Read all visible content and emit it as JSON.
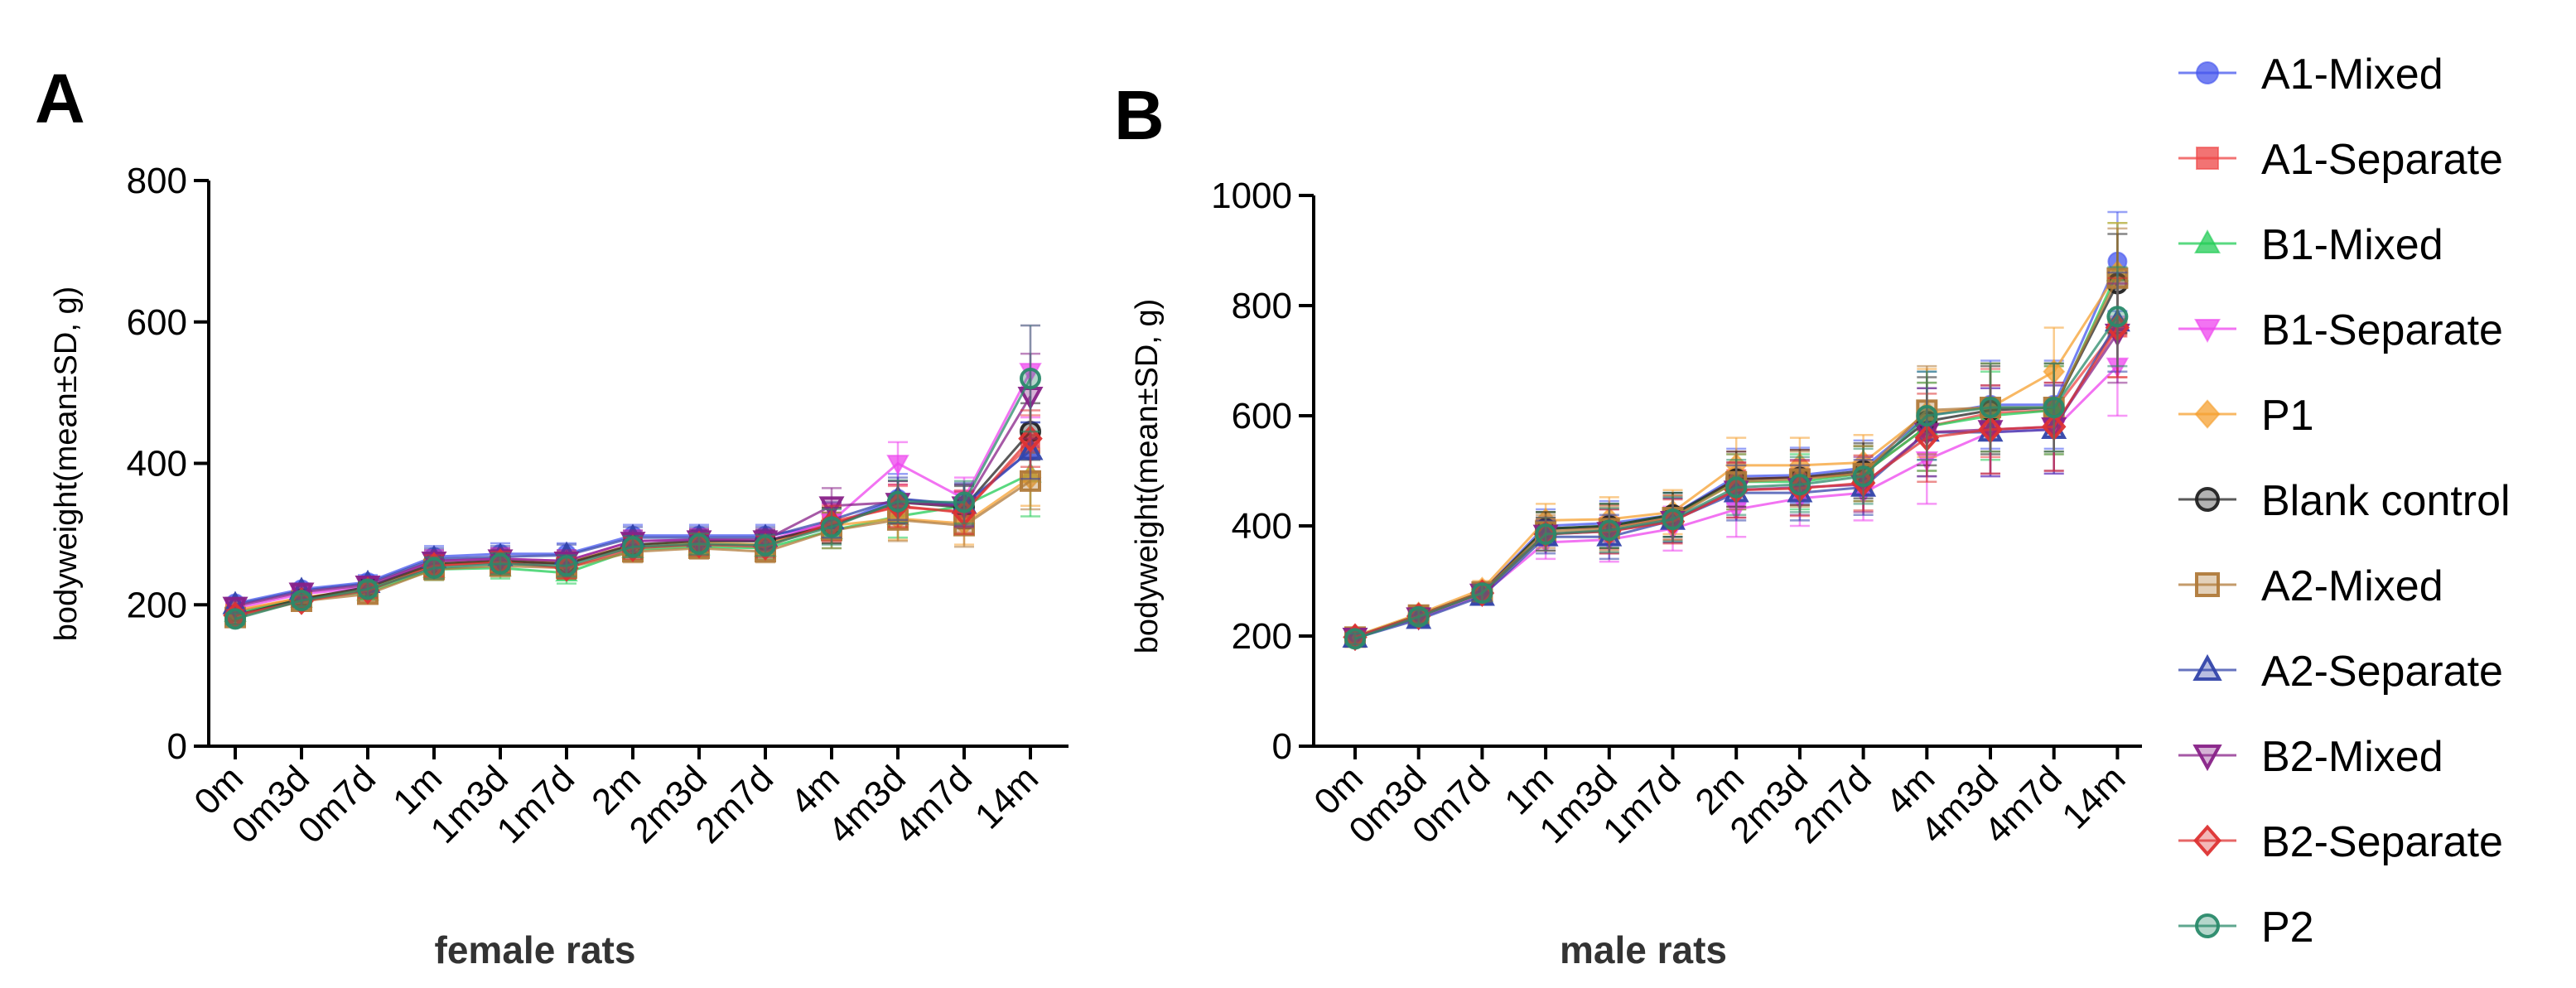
{
  "chart_data": [
    {
      "type": "line",
      "panel": "A",
      "title": "",
      "xlabel": "female rats",
      "ylabel": "bodyweight(mean±SD, g)",
      "ylim": [
        0,
        800
      ],
      "yticks": [
        0,
        200,
        400,
        600,
        800
      ],
      "categories": [
        "0m",
        "0m3d",
        "0m7d",
        "1m",
        "1m3d",
        "1m7d",
        "2m",
        "2m3d",
        "2m7d",
        "4m",
        "4m3d",
        "4m7d",
        "14m"
      ],
      "error_bars": true,
      "series": [
        {
          "name": "A1-Mixed",
          "values": [
            202,
            222,
            232,
            268,
            272,
            272,
            298,
            298,
            298,
            312,
            350,
            340,
            418
          ],
          "sd": [
            8,
            8,
            10,
            15,
            15,
            15,
            15,
            15,
            15,
            25,
            35,
            30,
            40
          ]
        },
        {
          "name": "A1-Separate",
          "values": [
            190,
            210,
            220,
            255,
            260,
            258,
            282,
            285,
            285,
            318,
            338,
            332,
            428
          ],
          "sd": [
            8,
            8,
            10,
            15,
            15,
            15,
            15,
            15,
            15,
            25,
            30,
            30,
            40
          ]
        },
        {
          "name": "B1-Mixed",
          "values": [
            188,
            208,
            218,
            250,
            252,
            245,
            278,
            282,
            280,
            305,
            325,
            340,
            385
          ],
          "sd": [
            8,
            8,
            10,
            15,
            15,
            15,
            15,
            15,
            15,
            25,
            30,
            30,
            60
          ]
        },
        {
          "name": "B1-Separate",
          "values": [
            195,
            215,
            225,
            262,
            265,
            262,
            290,
            292,
            290,
            318,
            400,
            350,
            530
          ],
          "sd": [
            8,
            8,
            10,
            15,
            15,
            15,
            15,
            15,
            15,
            25,
            30,
            30,
            65
          ]
        },
        {
          "name": "P1",
          "values": [
            192,
            210,
            222,
            258,
            262,
            260,
            285,
            288,
            285,
            312,
            322,
            315,
            380
          ],
          "sd": [
            8,
            8,
            10,
            15,
            15,
            15,
            15,
            15,
            15,
            25,
            30,
            30,
            40
          ]
        },
        {
          "name": "Blank control",
          "values": [
            185,
            208,
            225,
            258,
            262,
            258,
            285,
            290,
            290,
            312,
            345,
            338,
            445
          ],
          "sd": [
            8,
            8,
            10,
            15,
            15,
            15,
            15,
            15,
            15,
            25,
            30,
            30,
            40
          ]
        },
        {
          "name": "A2-Mixed",
          "values": [
            182,
            205,
            215,
            250,
            255,
            252,
            275,
            280,
            275,
            305,
            320,
            312,
            375
          ],
          "sd": [
            8,
            8,
            10,
            15,
            15,
            15,
            15,
            15,
            15,
            25,
            30,
            30,
            40
          ]
        },
        {
          "name": "A2-Separate",
          "values": [
            200,
            220,
            230,
            265,
            268,
            270,
            295,
            295,
            295,
            320,
            350,
            342,
            418
          ],
          "sd": [
            8,
            8,
            10,
            15,
            15,
            15,
            15,
            15,
            15,
            25,
            30,
            30,
            40
          ]
        },
        {
          "name": "B2-Mixed",
          "values": [
            198,
            218,
            228,
            262,
            265,
            262,
            290,
            292,
            292,
            340,
            345,
            340,
            495
          ],
          "sd": [
            8,
            8,
            10,
            15,
            15,
            15,
            15,
            15,
            15,
            25,
            30,
            30,
            60
          ]
        },
        {
          "name": "B2-Separate",
          "values": [
            185,
            205,
            220,
            255,
            260,
            252,
            280,
            285,
            282,
            315,
            340,
            330,
            435
          ],
          "sd": [
            8,
            8,
            10,
            15,
            15,
            15,
            15,
            15,
            15,
            25,
            30,
            30,
            40
          ]
        },
        {
          "name": "P2",
          "values": [
            180,
            206,
            222,
            252,
            258,
            255,
            282,
            286,
            284,
            310,
            346,
            345,
            520
          ],
          "sd": [
            8,
            8,
            10,
            15,
            15,
            15,
            15,
            15,
            15,
            25,
            30,
            30,
            75
          ]
        }
      ]
    },
    {
      "type": "line",
      "panel": "B",
      "title": "",
      "xlabel": "male rats",
      "ylabel": "bodyweight(mean±SD, g)",
      "ylim": [
        0,
        1000
      ],
      "yticks": [
        0,
        200,
        400,
        600,
        800,
        1000
      ],
      "categories": [
        "0m",
        "0m3d",
        "0m7d",
        "1m",
        "1m3d",
        "1m7d",
        "2m",
        "2m3d",
        "2m7d",
        "4m",
        "4m3d",
        "4m7d",
        "14m"
      ],
      "error_bars": true,
      "series": [
        {
          "name": "A1-Mixed",
          "values": [
            200,
            235,
            280,
            400,
            405,
            420,
            490,
            492,
            505,
            600,
            620,
            620,
            880
          ],
          "sd": [
            10,
            12,
            15,
            30,
            40,
            40,
            50,
            50,
            50,
            80,
            80,
            80,
            90
          ]
        },
        {
          "name": "A1-Separate",
          "values": [
            198,
            238,
            280,
            395,
            398,
            415,
            485,
            488,
            495,
            580,
            605,
            610,
            760
          ],
          "sd": [
            10,
            12,
            15,
            30,
            40,
            40,
            50,
            50,
            50,
            80,
            80,
            80,
            90
          ]
        },
        {
          "name": "B1-Mixed",
          "values": [
            195,
            235,
            278,
            395,
            400,
            420,
            480,
            480,
            495,
            580,
            600,
            610,
            860
          ],
          "sd": [
            10,
            12,
            15,
            30,
            40,
            40,
            50,
            50,
            50,
            80,
            80,
            80,
            90
          ]
        },
        {
          "name": "B1-Separate",
          "values": [
            198,
            232,
            275,
            370,
            375,
            395,
            430,
            450,
            460,
            520,
            570,
            575,
            690
          ],
          "sd": [
            10,
            12,
            15,
            30,
            40,
            40,
            50,
            50,
            50,
            80,
            80,
            80,
            90
          ]
        },
        {
          "name": "P1",
          "values": [
            200,
            240,
            285,
            410,
            412,
            425,
            510,
            510,
            515,
            605,
            615,
            680,
            860
          ],
          "sd": [
            10,
            12,
            15,
            30,
            40,
            40,
            50,
            50,
            50,
            80,
            80,
            80,
            90
          ]
        },
        {
          "name": "Blank control",
          "values": [
            198,
            238,
            280,
            395,
            400,
            420,
            485,
            488,
            500,
            590,
            610,
            615,
            840
          ],
          "sd": [
            10,
            12,
            15,
            30,
            40,
            40,
            50,
            50,
            50,
            80,
            80,
            80,
            90
          ]
        },
        {
          "name": "A2-Mixed",
          "values": [
            198,
            238,
            280,
            390,
            395,
            415,
            480,
            485,
            495,
            610,
            615,
            615,
            850
          ],
          "sd": [
            10,
            12,
            15,
            30,
            40,
            40,
            50,
            50,
            50,
            80,
            80,
            80,
            90
          ]
        },
        {
          "name": "A2-Separate",
          "values": [
            196,
            230,
            272,
            380,
            380,
            410,
            460,
            460,
            470,
            570,
            570,
            575,
            770
          ],
          "sd": [
            10,
            12,
            15,
            30,
            40,
            40,
            50,
            50,
            50,
            80,
            80,
            80,
            90
          ]
        },
        {
          "name": "B2-Mixed",
          "values": [
            198,
            235,
            278,
            385,
            390,
            410,
            465,
            470,
            475,
            570,
            575,
            580,
            750
          ],
          "sd": [
            10,
            12,
            15,
            30,
            40,
            40,
            50,
            50,
            50,
            80,
            80,
            80,
            90
          ]
        },
        {
          "name": "B2-Separate",
          "values": [
            198,
            236,
            278,
            385,
            390,
            408,
            465,
            468,
            478,
            560,
            575,
            580,
            760
          ],
          "sd": [
            10,
            12,
            15,
            30,
            40,
            40,
            50,
            50,
            50,
            80,
            80,
            80,
            90
          ]
        },
        {
          "name": "P2",
          "values": [
            195,
            235,
            278,
            385,
            392,
            412,
            470,
            475,
            490,
            600,
            615,
            615,
            780
          ],
          "sd": [
            10,
            12,
            15,
            30,
            40,
            40,
            50,
            50,
            50,
            80,
            80,
            80,
            90
          ]
        }
      ]
    }
  ],
  "legend": [
    {
      "name": "A1-Mixed",
      "color": "#4455ee",
      "marker": "circle",
      "hollow": false
    },
    {
      "name": "A1-Separate",
      "color": "#ee4444",
      "marker": "square",
      "hollow": false
    },
    {
      "name": "B1-Mixed",
      "color": "#22cc55",
      "marker": "triangle-up",
      "hollow": false
    },
    {
      "name": "B1-Separate",
      "color": "#ee44ee",
      "marker": "triangle-down",
      "hollow": false
    },
    {
      "name": "P1",
      "color": "#f5a030",
      "marker": "diamond",
      "hollow": false
    },
    {
      "name": "Blank control",
      "color": "#222222",
      "marker": "circle",
      "hollow": true
    },
    {
      "name": "A2-Mixed",
      "color": "#b07a3a",
      "marker": "square",
      "hollow": true
    },
    {
      "name": "A2-Separate",
      "color": "#3344aa",
      "marker": "triangle-up",
      "hollow": true
    },
    {
      "name": "B2-Mixed",
      "color": "#882288",
      "marker": "triangle-down",
      "hollow": true
    },
    {
      "name": "B2-Separate",
      "color": "#dd3333",
      "marker": "diamond",
      "hollow": true
    },
    {
      "name": "P2",
      "color": "#2a8a6a",
      "marker": "circle",
      "hollow": true
    }
  ]
}
